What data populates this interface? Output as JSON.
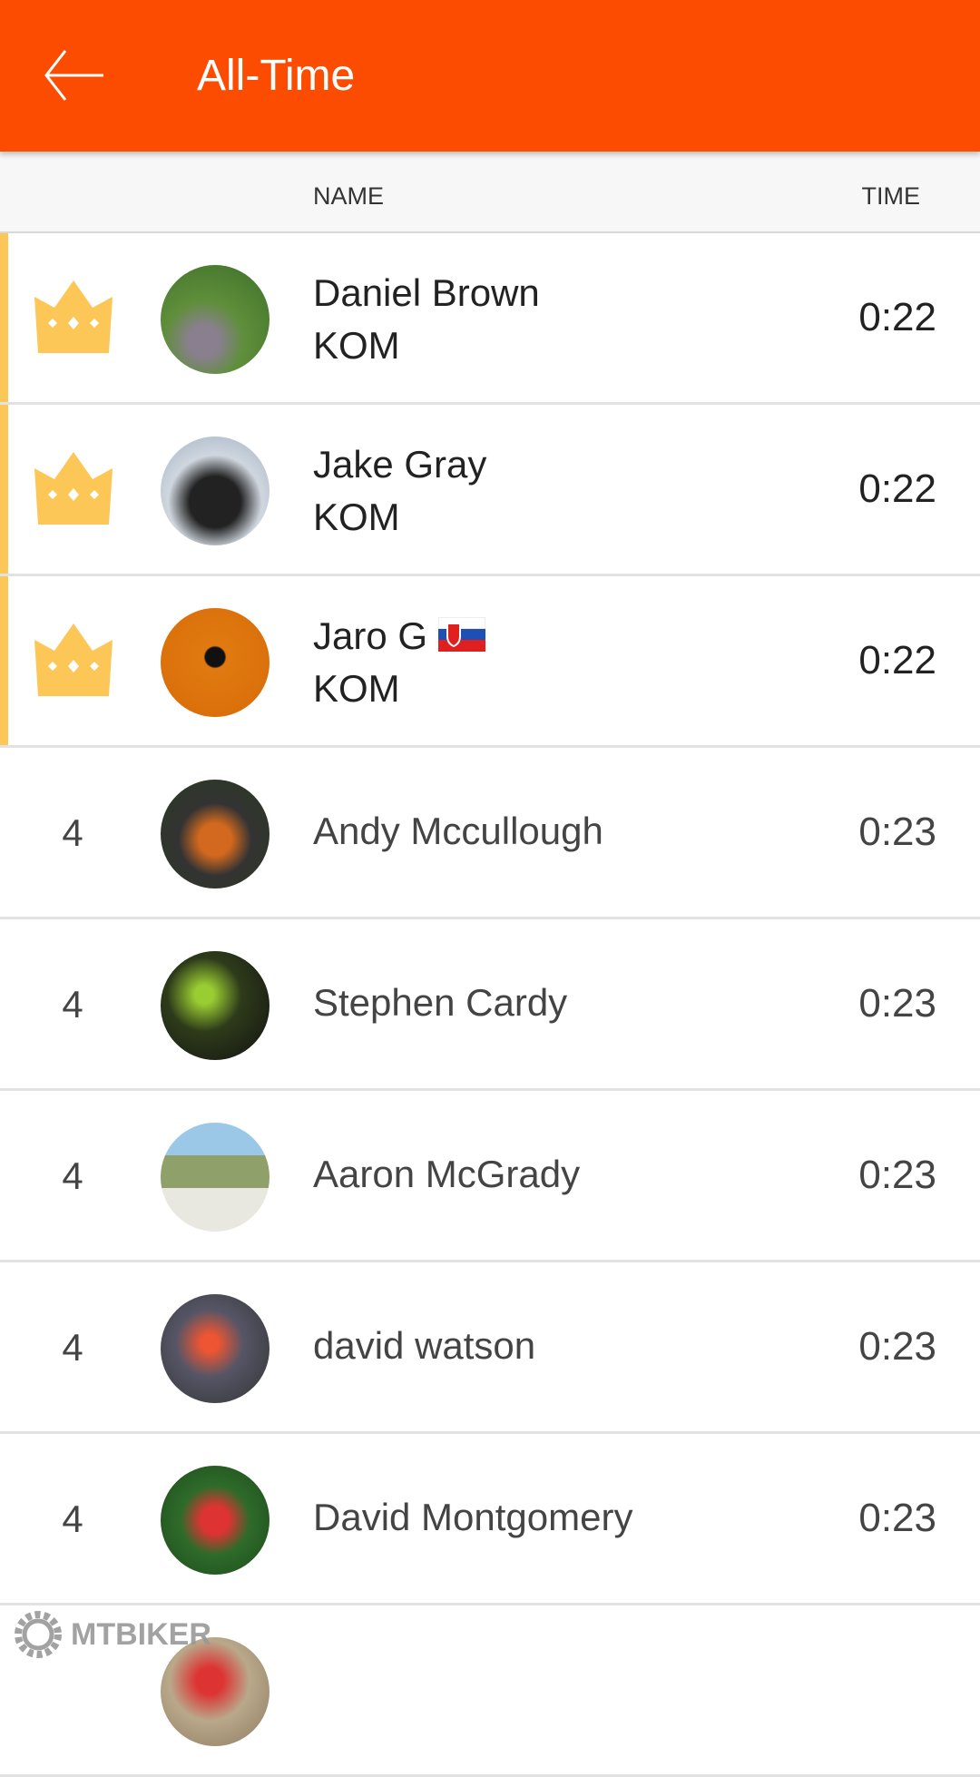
{
  "header": {
    "title": "All-Time",
    "back_icon": "arrow-left-icon",
    "background": "#FC4C02"
  },
  "columns": {
    "name": "NAME",
    "time": "TIME"
  },
  "accent_kom": "#FCC757",
  "rows": [
    {
      "rank": "",
      "crown": true,
      "name": "Daniel Brown",
      "sub": "KOM",
      "time": "0:22"
    },
    {
      "rank": "",
      "crown": true,
      "name": "Jake Gray",
      "sub": "KOM",
      "time": "0:22"
    },
    {
      "rank": "",
      "crown": true,
      "name": "Jaro G",
      "flag": "Slovakia",
      "sub": "KOM",
      "time": "0:22"
    },
    {
      "rank": "4",
      "name": "Andy Mccullough",
      "time": "0:23"
    },
    {
      "rank": "4",
      "name": "Stephen Cardy",
      "time": "0:23"
    },
    {
      "rank": "4",
      "name": "Aaron McGrady",
      "time": "0:23"
    },
    {
      "rank": "4",
      "name": "david watson",
      "time": "0:23"
    },
    {
      "rank": "4",
      "name": "David Montgomery",
      "time": "0:23"
    }
  ],
  "watermark": "MTBIKER"
}
